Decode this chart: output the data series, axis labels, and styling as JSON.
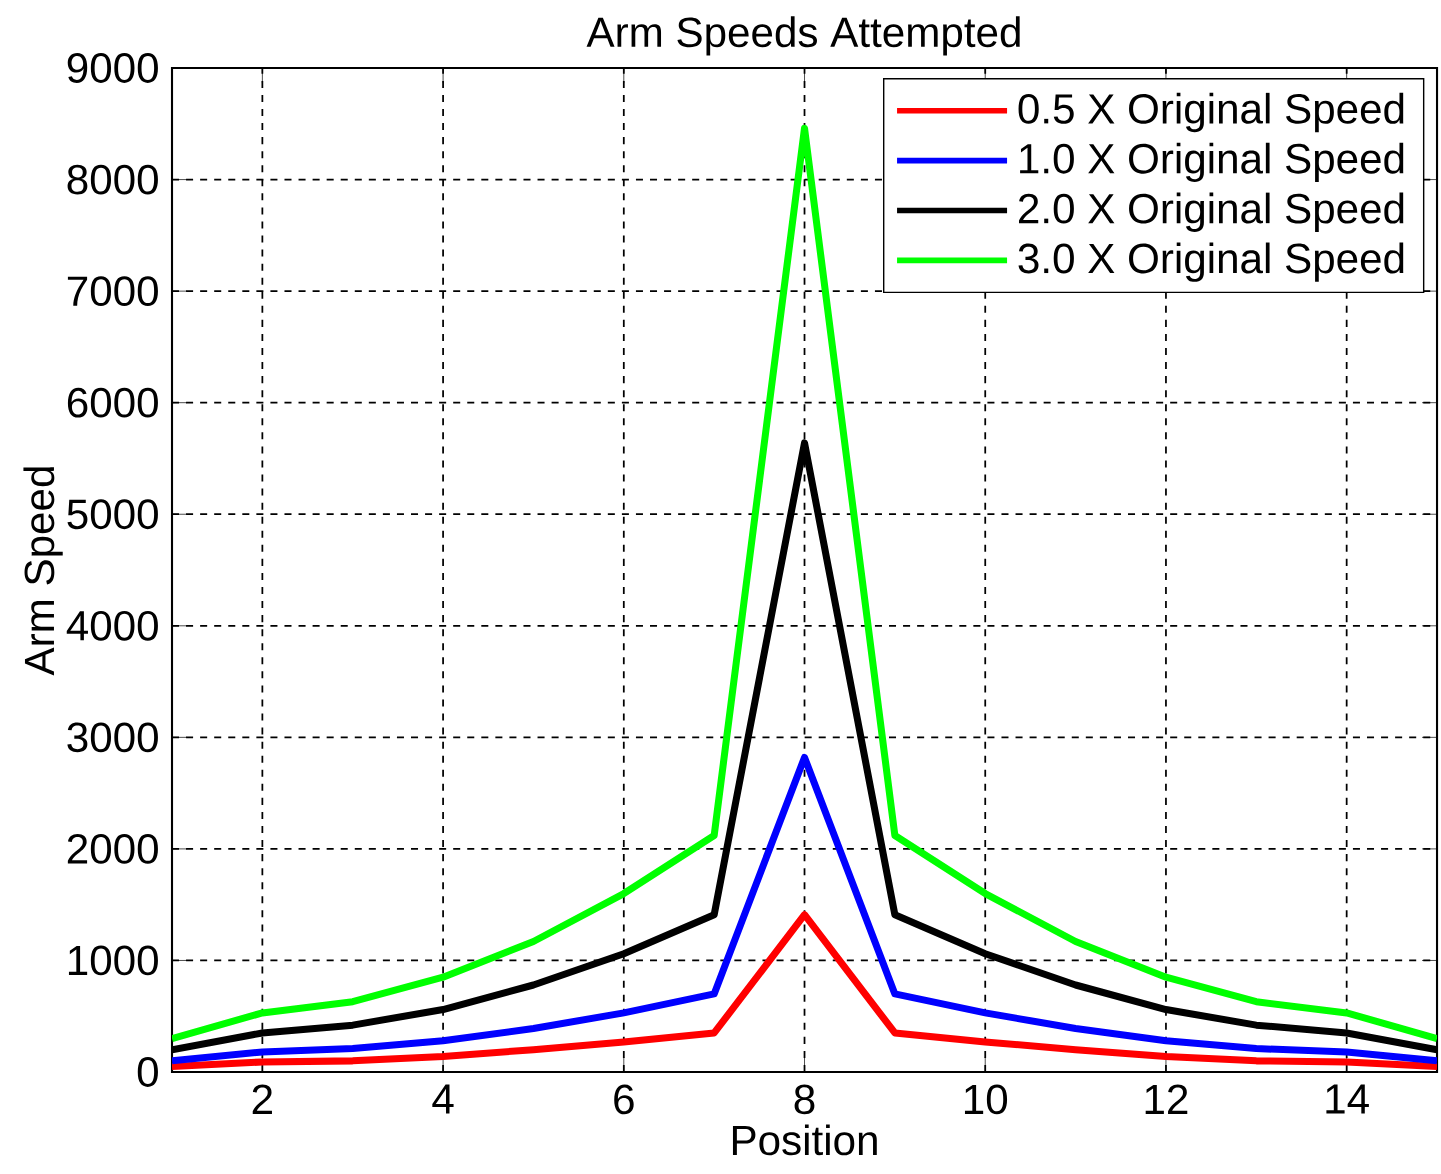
{
  "chart_data": {
    "type": "line",
    "title": "Arm Speeds Attempted",
    "xlabel": "Position",
    "ylabel": "Arm Speed",
    "x": [
      1,
      2,
      3,
      4,
      5,
      6,
      7,
      8,
      9,
      10,
      11,
      12,
      13,
      14,
      15
    ],
    "series": [
      {
        "name": "0.5 X Original Speed",
        "color": "#ff0000",
        "values": [
          50,
          90,
          100,
          140,
          200,
          270,
          350,
          1410,
          350,
          270,
          200,
          140,
          100,
          90,
          50
        ]
      },
      {
        "name": "1.0 X Original Speed",
        "color": "#0000ff",
        "values": [
          100,
          180,
          210,
          280,
          390,
          530,
          700,
          2820,
          700,
          530,
          390,
          280,
          210,
          180,
          100
        ]
      },
      {
        "name": "2.0 X Original Speed",
        "color": "#000000",
        "values": [
          200,
          350,
          420,
          560,
          780,
          1060,
          1410,
          5640,
          1410,
          1060,
          780,
          560,
          420,
          350,
          200
        ]
      },
      {
        "name": "3.0 X Original Speed",
        "color": "#00ff00",
        "values": [
          300,
          530,
          630,
          850,
          1170,
          1600,
          2120,
          8460,
          2120,
          1600,
          1170,
          850,
          630,
          530,
          300
        ]
      }
    ],
    "xlim": [
      1,
      15
    ],
    "ylim": [
      0,
      9000
    ],
    "xticks": [
      2,
      4,
      6,
      8,
      10,
      12,
      14
    ],
    "yticks": [
      0,
      1000,
      2000,
      3000,
      4000,
      5000,
      6000,
      7000,
      8000,
      9000
    ],
    "grid": true,
    "legend": "top right",
    "line_style": "solid",
    "marker": "none"
  }
}
